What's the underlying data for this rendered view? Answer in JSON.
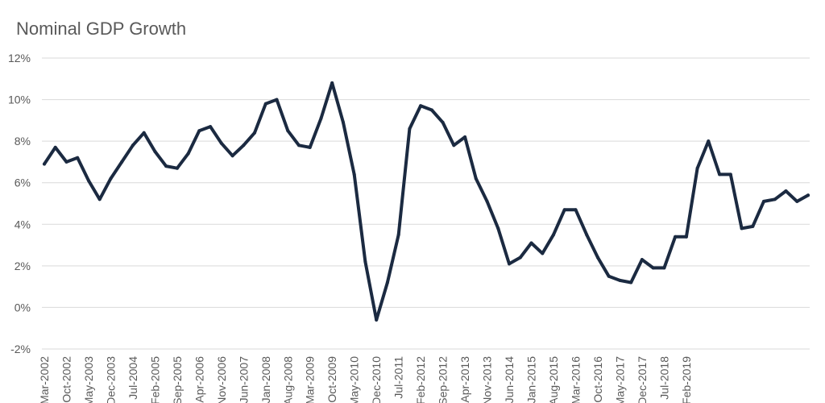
{
  "chart_data": {
    "type": "line",
    "title": "Nominal GDP Growth",
    "xlabel": "",
    "ylabel": "",
    "ylim": [
      -0.02,
      0.12
    ],
    "y_ticks": [
      "-2%",
      "0%",
      "2%",
      "4%",
      "6%",
      "8%",
      "10%",
      "12%"
    ],
    "y_tick_values": [
      -0.02,
      0,
      0.02,
      0.04,
      0.06,
      0.08,
      0.1,
      0.12
    ],
    "x_tick_labels": [
      "Mar-2002",
      "Oct-2002",
      "May-2003",
      "Dec-2003",
      "Jul-2004",
      "Feb-2005",
      "Sep-2005",
      "Apr-2006",
      "Nov-2006",
      "Jun-2007",
      "Jan-2008",
      "Aug-2008",
      "Mar-2009",
      "Oct-2009",
      "May-2010",
      "Dec-2010",
      "Jul-2011",
      "Feb-2012",
      "Sep-2012",
      "Apr-2013",
      "Nov-2013",
      "Jun-2014",
      "Jan-2015",
      "Aug-2015",
      "Mar-2016",
      "Oct-2016",
      "May-2017",
      "Dec-2017",
      "Jul-2018",
      "Feb-2019"
    ],
    "x_tick_point_index": [
      0,
      2,
      4,
      6,
      8,
      10,
      12,
      14,
      16,
      18,
      20,
      22,
      24,
      26,
      28,
      30,
      32,
      34,
      36,
      38,
      40,
      42,
      44,
      46,
      48,
      50,
      52,
      54,
      56,
      58
    ],
    "grid": true,
    "legend": "none",
    "color": "#1b2a41",
    "series": [
      {
        "name": "",
        "values": [
          0.069,
          0.077,
          0.07,
          0.072,
          0.061,
          0.052,
          0.062,
          0.07,
          0.078,
          0.084,
          0.075,
          0.068,
          0.067,
          0.074,
          0.085,
          0.087,
          0.079,
          0.073,
          0.078,
          0.084,
          0.098,
          0.1,
          0.085,
          0.078,
          0.077,
          0.091,
          0.108,
          0.089,
          0.064,
          0.022,
          -0.006,
          0.012,
          0.035,
          0.086,
          0.097,
          0.095,
          0.089,
          0.078,
          0.082,
          0.062,
          0.051,
          0.038,
          0.021,
          0.024,
          0.031,
          0.026,
          0.035,
          0.047,
          0.047,
          0.035,
          0.024,
          0.015,
          0.013,
          0.012,
          0.023,
          0.019,
          0.019,
          0.034,
          0.034,
          0.067,
          0.08,
          0.064,
          0.064,
          0.038,
          0.039,
          0.051,
          0.052,
          0.056,
          0.051,
          0.054
        ]
      }
    ]
  }
}
